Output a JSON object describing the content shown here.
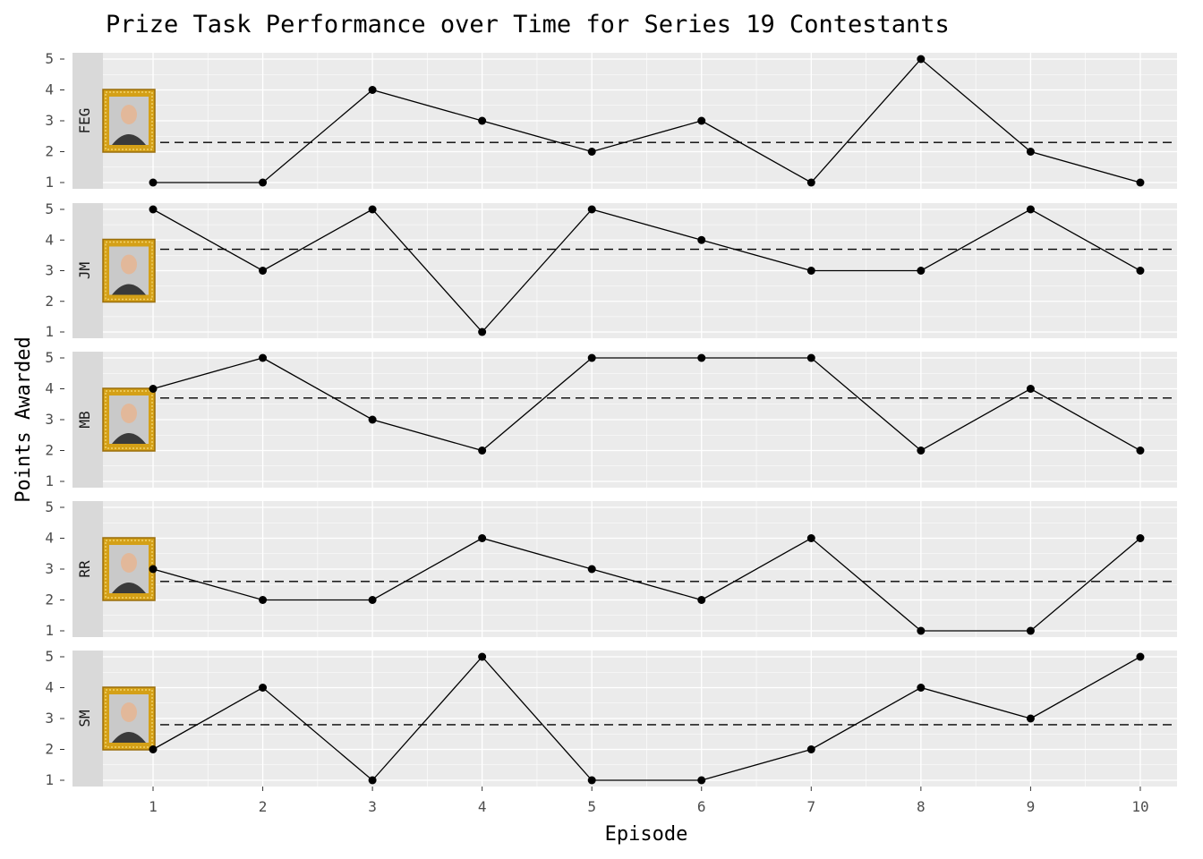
{
  "chart_data": {
    "type": "line",
    "title": "Prize Task Performance over Time for Series 19 Contestants",
    "xlabel": "Episode",
    "ylabel": "Points Awarded",
    "x": [
      1,
      2,
      3,
      4,
      5,
      6,
      7,
      8,
      9,
      10
    ],
    "x_tick_labels": [
      "1",
      "2",
      "3",
      "4",
      "5",
      "6",
      "7",
      "8",
      "9",
      "10"
    ],
    "y_tick_labels": [
      "1",
      "2",
      "3",
      "4",
      "5"
    ],
    "ylim": [
      1,
      5
    ],
    "xlim": [
      1,
      10
    ],
    "grid": true,
    "facets": [
      {
        "name": "FEG",
        "values": [
          1,
          1,
          4,
          3,
          2,
          3,
          1,
          5,
          2,
          1
        ],
        "mean": 2.3
      },
      {
        "name": "JM",
        "values": [
          5,
          3,
          5,
          1,
          5,
          4,
          3,
          3,
          5,
          3
        ],
        "mean": 3.7
      },
      {
        "name": "MB",
        "values": [
          4,
          5,
          3,
          2,
          5,
          5,
          5,
          2,
          4,
          2
        ],
        "mean": 3.7
      },
      {
        "name": "RR",
        "values": [
          3,
          2,
          2,
          4,
          3,
          2,
          4,
          1,
          1,
          4
        ],
        "mean": 2.6
      },
      {
        "name": "SM",
        "values": [
          2,
          4,
          1,
          5,
          1,
          1,
          2,
          4,
          3,
          5
        ],
        "mean": 2.8
      }
    ],
    "reference_line": "dashed horizontal line at each contestant's mean score",
    "colors": {
      "panel_background": "#ebebeb",
      "strip_background": "#d9d9d9",
      "line": "#000000",
      "frame_gold": "#d4a017"
    }
  }
}
